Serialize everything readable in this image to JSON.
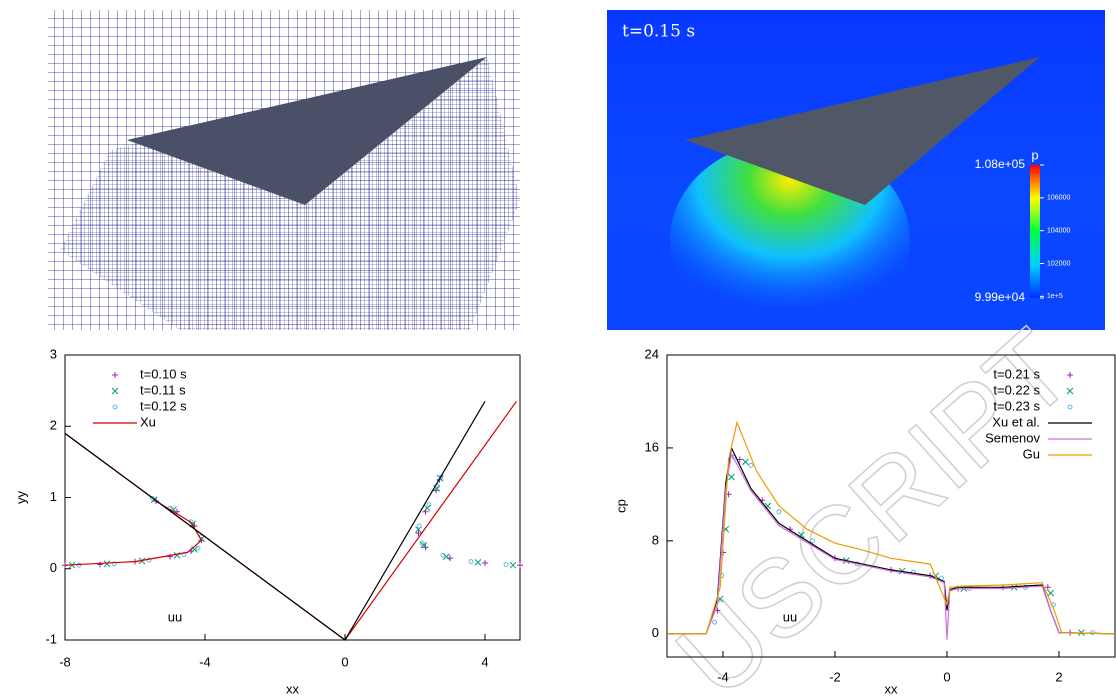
{
  "contour": {
    "label": "t=0.15 s",
    "colorbar": {
      "title": "p",
      "lim": [
        {
          "value": 99900,
          "label": "9.99e+04"
        },
        {
          "value": 108000,
          "label": "1.08e+05"
        }
      ],
      "ticks": [
        {
          "value": 100000,
          "label": "1e+5"
        },
        102000,
        104000,
        106000
      ]
    }
  },
  "watermark": "USCRIPT",
  "chart_data": [
    {
      "type": "line",
      "xlabel": "xx",
      "ylabel": "yy",
      "annotation": "uu",
      "xlim": [
        -8,
        5
      ],
      "ylim": [
        -1,
        3
      ],
      "xticks": [
        -8,
        -4,
        0,
        4
      ],
      "yticks": [
        -1,
        0,
        1,
        2,
        3
      ],
      "legend": "top-left",
      "series": [
        {
          "name": "t=0.10 s",
          "color": "#a020c0",
          "marker": "plus",
          "x": [
            -8,
            -7,
            -6,
            -5,
            -4.4,
            -4.1,
            -4.3,
            -4.8,
            -5.4,
            5,
            4,
            3,
            2.3,
            2.1,
            2.3,
            2.6,
            2.7
          ],
          "values": [
            0.05,
            0.06,
            0.1,
            0.17,
            0.25,
            0.4,
            0.6,
            0.8,
            0.95,
            0.05,
            0.08,
            0.15,
            0.3,
            0.5,
            0.8,
            1.1,
            1.25
          ]
        },
        {
          "name": "t=0.11 s",
          "color": "#009e73",
          "marker": "cross",
          "x": [
            -7.8,
            -6.8,
            -5.8,
            -4.8,
            -4.3,
            -4.1,
            -4.35,
            -4.9,
            -5.45,
            4.8,
            3.8,
            2.9,
            2.25,
            2.1,
            2.35,
            2.62,
            2.72
          ],
          "values": [
            0.05,
            0.07,
            0.11,
            0.19,
            0.27,
            0.42,
            0.63,
            0.83,
            0.97,
            0.05,
            0.09,
            0.17,
            0.33,
            0.55,
            0.85,
            1.13,
            1.27
          ]
        },
        {
          "name": "t=0.12 s",
          "color": "#3aa8d8",
          "marker": "circle",
          "x": [
            -7.6,
            -6.6,
            -5.6,
            -4.6,
            -4.2,
            -4.1,
            -4.4,
            -5,
            -5.5,
            4.6,
            3.6,
            2.8,
            2.2,
            2.12,
            2.4,
            2.64,
            2.74
          ],
          "values": [
            0.05,
            0.07,
            0.12,
            0.2,
            0.29,
            0.45,
            0.66,
            0.85,
            0.99,
            0.06,
            0.1,
            0.19,
            0.36,
            0.6,
            0.9,
            1.16,
            1.29
          ]
        },
        {
          "name": "Xu",
          "color": "#d00000",
          "marker": null,
          "x": [
            -8,
            0,
            4.9,
            null,
            -8,
            -6,
            -4.5,
            -4.1,
            -4.4,
            -5.4
          ],
          "values": [
            1.9,
            -1,
            2.35,
            null,
            0.05,
            0.1,
            0.23,
            0.4,
            0.65,
            0.95
          ]
        },
        {
          "name": null,
          "color": "#000000",
          "marker": null,
          "x": [
            -8,
            0,
            4
          ],
          "values": [
            1.9,
            -1,
            2.35
          ]
        }
      ]
    },
    {
      "type": "line",
      "xlabel": "xx",
      "ylabel": "cp",
      "annotation": "uu",
      "xlim": [
        -5,
        3
      ],
      "ylim": [
        -2,
        24
      ],
      "xticks": [
        -4,
        -2,
        0,
        2
      ],
      "yticks": [
        0,
        8,
        16,
        24
      ],
      "legend": "top-right",
      "series": [
        {
          "name": "t=0.21 s",
          "color": "#a020c0",
          "marker": "plus",
          "x": [
            -4.1,
            -4,
            -3.9,
            -3.7,
            -3.3,
            -2.8,
            -2,
            -1,
            -0.3,
            0.2,
            1,
            1.8,
            2.2
          ],
          "values": [
            2,
            7,
            12,
            15,
            11.5,
            9,
            6.5,
            5.5,
            5,
            3.9,
            4,
            4,
            0.1
          ]
        },
        {
          "name": "t=0.22 s",
          "color": "#009e73",
          "marker": "cross",
          "x": [
            -4.05,
            -3.95,
            -3.85,
            -3.6,
            -3.2,
            -2.6,
            -1.8,
            -0.8,
            -0.2,
            0.3,
            1.2,
            1.85,
            2.4
          ],
          "values": [
            3,
            9,
            13.5,
            14.8,
            11,
            8.5,
            6.3,
            5.4,
            5,
            3.9,
            4,
            3.5,
            0.1
          ]
        },
        {
          "name": "t=0.23 s",
          "color": "#3aa8d8",
          "marker": "circle",
          "x": [
            -4.15,
            -4.02,
            -3.8,
            -3.5,
            -3.0,
            -2.4,
            -1.6,
            -0.6,
            -0.1,
            0.4,
            1.4,
            1.9,
            2.6
          ],
          "values": [
            1,
            5,
            15.2,
            14.5,
            10.5,
            8,
            6,
            5.3,
            4.8,
            3.9,
            4,
            2.5,
            0.1
          ]
        },
        {
          "name": "Xu et al.",
          "color": "#000000",
          "marker": null,
          "x": [
            -5,
            -4.3,
            -4.1,
            -3.95,
            -3.85,
            -3.5,
            -3,
            -2,
            -1,
            -0.3,
            -0.05,
            0,
            0.05,
            0.2,
            1,
            1.7,
            1.85,
            2,
            3
          ],
          "values": [
            0,
            0,
            3,
            13,
            16,
            12.5,
            9.5,
            6.5,
            5.5,
            5,
            4.5,
            2,
            3.8,
            4,
            4,
            4.2,
            2,
            0.1,
            0
          ]
        },
        {
          "name": "Semenov",
          "color": "#d070e0",
          "marker": null,
          "x": [
            -5,
            -4.3,
            -4.1,
            -3.95,
            -3.85,
            -3.5,
            -3,
            -2,
            -1,
            -0.3,
            -0.05,
            0,
            0.05,
            0.2,
            1,
            1.7,
            1.85,
            2,
            3
          ],
          "values": [
            0,
            0,
            2.5,
            12.5,
            15.5,
            12.3,
            9.3,
            6.4,
            5.4,
            4.9,
            4.4,
            -0.5,
            3.7,
            3.9,
            3.9,
            4.1,
            2,
            0.1,
            0
          ]
        },
        {
          "name": "Gu",
          "color": "#e8a000",
          "marker": null,
          "x": [
            -5,
            -4.3,
            -4.05,
            -3.9,
            -3.75,
            -3.4,
            -3,
            -2.5,
            -2,
            -1.5,
            -1,
            -0.3,
            0,
            0.05,
            0.3,
            1,
            1.7,
            1.9,
            2.05,
            3
          ],
          "values": [
            0,
            0,
            4,
            15,
            18.2,
            14,
            11,
            9,
            7.8,
            7.2,
            6.5,
            6,
            2.5,
            4,
            4.1,
            4.2,
            4.4,
            2.2,
            0.1,
            0
          ]
        }
      ]
    }
  ]
}
